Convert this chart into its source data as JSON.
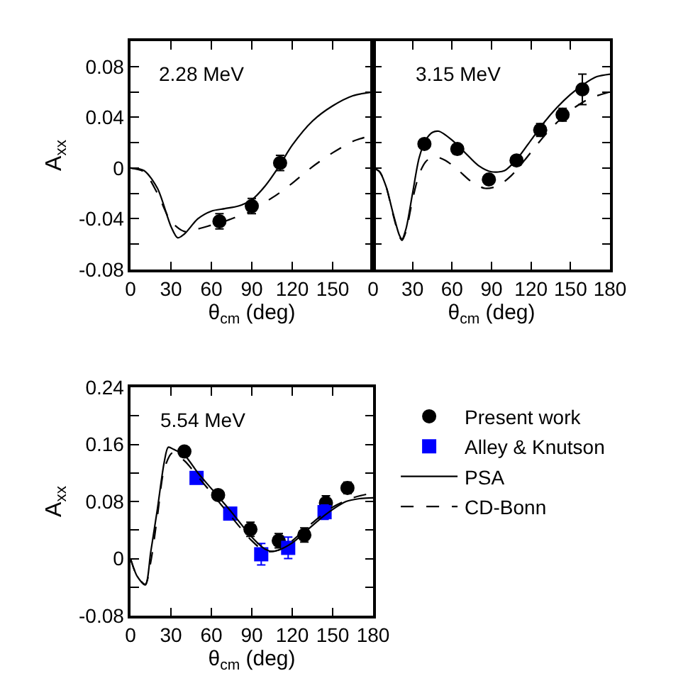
{
  "chart_data": [
    {
      "type": "scatter",
      "annotations": [
        "2.28 MeV"
      ],
      "xlabel": "θ$_{cm}$ (deg)",
      "ylabel": "A$_{xx}$",
      "xlim": [
        0,
        180
      ],
      "xticks": [
        0,
        30,
        60,
        90,
        120,
        150
      ],
      "ylim": [
        -0.08,
        0.1
      ],
      "yticks": [
        -0.08,
        {
          "value": -0.06,
          "label": null
        },
        -0.04,
        {
          "value": -0.02,
          "label": null
        },
        0,
        {
          "value": 0.02,
          "label": null
        },
        0.04,
        {
          "value": 0.06,
          "label": null
        },
        0.08
      ],
      "series": [
        {
          "marker": "circle",
          "color": "#000000",
          "x": [
            66,
            90,
            111
          ],
          "values": [
            -0.042,
            -0.03,
            0.004
          ],
          "errors": [
            0.006,
            0.006,
            0.006
          ]
        },
        {
          "type": "line",
          "marker": "none",
          "line_style": "solid",
          "color": "#000000",
          "x": [
            0,
            10,
            20,
            30,
            35,
            40,
            50,
            60,
            70,
            80,
            90,
            100,
            110,
            120,
            135,
            150,
            165,
            180
          ],
          "values": [
            0,
            -0.002,
            -0.016,
            -0.046,
            -0.055,
            -0.052,
            -0.04,
            -0.034,
            -0.032,
            -0.03,
            -0.025,
            -0.014,
            0.001,
            0.018,
            0.037,
            0.049,
            0.057,
            0.06
          ]
        },
        {
          "type": "line",
          "marker": "none",
          "line_style": "dashed",
          "color": "#000000",
          "x": [
            0,
            10,
            20,
            30,
            40,
            50,
            60,
            70,
            80,
            90,
            100,
            110,
            120,
            135,
            150,
            165,
            180
          ],
          "values": [
            0,
            -0.003,
            -0.02,
            -0.042,
            -0.05,
            -0.048,
            -0.045,
            -0.042,
            -0.038,
            -0.034,
            -0.027,
            -0.02,
            -0.012,
            0.001,
            0.012,
            0.021,
            0.026
          ]
        }
      ]
    },
    {
      "type": "scatter",
      "annotations": [
        "3.15 MeV"
      ],
      "xlabel": "θ$_{cm}$ (deg)",
      "tick_labels": "x",
      "xlim": [
        0,
        180
      ],
      "xticks": [
        0,
        30,
        60,
        90,
        120,
        150,
        180
      ],
      "ylim": [
        -0.08,
        0.1
      ],
      "yticks": [
        -0.08,
        -0.06,
        -0.04,
        -0.02,
        0,
        0.02,
        0.04,
        0.06,
        0.08
      ],
      "series": [
        {
          "marker": "circle",
          "color": "#000000",
          "x": [
            39,
            64,
            88,
            109,
            127,
            144,
            159
          ],
          "values": [
            0.019,
            0.015,
            -0.009,
            0.006,
            0.03,
            0.042,
            0.062
          ],
          "errors": [
            null,
            null,
            null,
            null,
            0.005,
            0.005,
            0.012
          ]
        },
        {
          "type": "line",
          "marker": "none",
          "line_style": "solid",
          "color": "#000000",
          "x": [
            0,
            5,
            10,
            15,
            20,
            22,
            25,
            30,
            35,
            40,
            45,
            50,
            60,
            70,
            80,
            90,
            100,
            110,
            120,
            130,
            140,
            150,
            160,
            170,
            180
          ],
          "values": [
            0,
            -0.003,
            -0.015,
            -0.035,
            -0.053,
            -0.056,
            -0.048,
            -0.02,
            0.008,
            0.022,
            0.028,
            0.029,
            0.022,
            0.012,
            0.002,
            -0.003,
            -0.002,
            0.008,
            0.022,
            0.036,
            0.048,
            0.058,
            0.066,
            0.072,
            0.074
          ]
        },
        {
          "type": "line",
          "marker": "none",
          "line_style": "dashed",
          "color": "#000000",
          "x": [
            0,
            5,
            10,
            15,
            20,
            22,
            25,
            30,
            35,
            40,
            46,
            55,
            65,
            75,
            85,
            95,
            105,
            115,
            125,
            135,
            145,
            155,
            165,
            180
          ],
          "values": [
            0,
            -0.003,
            -0.015,
            -0.036,
            -0.054,
            -0.057,
            -0.05,
            -0.025,
            -0.005,
            0.005,
            0.009,
            0.006,
            -0.002,
            -0.011,
            -0.016,
            -0.014,
            -0.006,
            0.006,
            0.019,
            0.031,
            0.041,
            0.049,
            0.055,
            0.06
          ]
        }
      ]
    },
    {
      "type": "scatter",
      "annotations": [
        "5.54 MeV"
      ],
      "xlabel": "θ$_{cm}$ (deg)",
      "ylabel": "A$_{xx}$",
      "legend": "right",
      "xlim": [
        0,
        180
      ],
      "xticks": [
        0,
        30,
        60,
        90,
        120,
        150,
        180
      ],
      "ylim": [
        -0.08,
        0.24
      ],
      "yticks": [
        -0.08,
        {
          "value": -0.04,
          "label": null
        },
        0,
        {
          "value": 0.04,
          "label": null
        },
        0.08,
        {
          "value": 0.12,
          "label": null
        },
        0.16,
        {
          "value": 0.2,
          "label": null
        },
        0.24
      ],
      "series": [
        {
          "name": "Present work",
          "marker": "circle",
          "color": "#000000",
          "x": [
            40,
            65,
            89,
            110,
            129,
            145,
            161
          ],
          "values": [
            0.15,
            0.089,
            0.041,
            0.025,
            0.033,
            0.078,
            0.099
          ],
          "errors": [
            null,
            null,
            0.01,
            0.01,
            0.01,
            0.01,
            0.008
          ]
        },
        {
          "name": "Alley & Knutson",
          "marker": "square",
          "color": "#0000ff",
          "x": [
            49,
            74,
            97,
            117,
            144
          ],
          "values": [
            0.113,
            0.063,
            0.006,
            0.015,
            0.065
          ],
          "errors": [
            null,
            null,
            0.015,
            0.015,
            0.01
          ]
        },
        {
          "name": "PSA",
          "type": "line",
          "marker": "none",
          "line_style": "solid",
          "color": "#000000",
          "x": [
            0,
            5,
            11,
            15,
            20,
            25,
            28,
            32,
            40,
            50,
            60,
            75,
            90,
            100,
            105,
            110,
            120,
            130,
            145,
            160,
            170,
            180
          ],
          "values": [
            0,
            -0.025,
            -0.037,
            0.009,
            0.07,
            0.135,
            0.156,
            0.153,
            0.145,
            0.12,
            0.098,
            0.065,
            0.03,
            0.013,
            0.01,
            0.012,
            0.022,
            0.038,
            0.062,
            0.08,
            0.084,
            0.085
          ]
        },
        {
          "name": "CD-Bonn",
          "type": "line",
          "marker": "none",
          "line_style": "dashed",
          "color": "#000000",
          "x": [
            0,
            5,
            11,
            15,
            20,
            25,
            31,
            40,
            50,
            60,
            75,
            90,
            100,
            110,
            120,
            135,
            150,
            165,
            180
          ],
          "values": [
            0,
            -0.025,
            -0.036,
            -0.005,
            0.06,
            0.125,
            0.148,
            0.137,
            0.115,
            0.092,
            0.058,
            0.025,
            0.01,
            0.012,
            0.025,
            0.05,
            0.072,
            0.085,
            0.092
          ]
        }
      ]
    }
  ]
}
